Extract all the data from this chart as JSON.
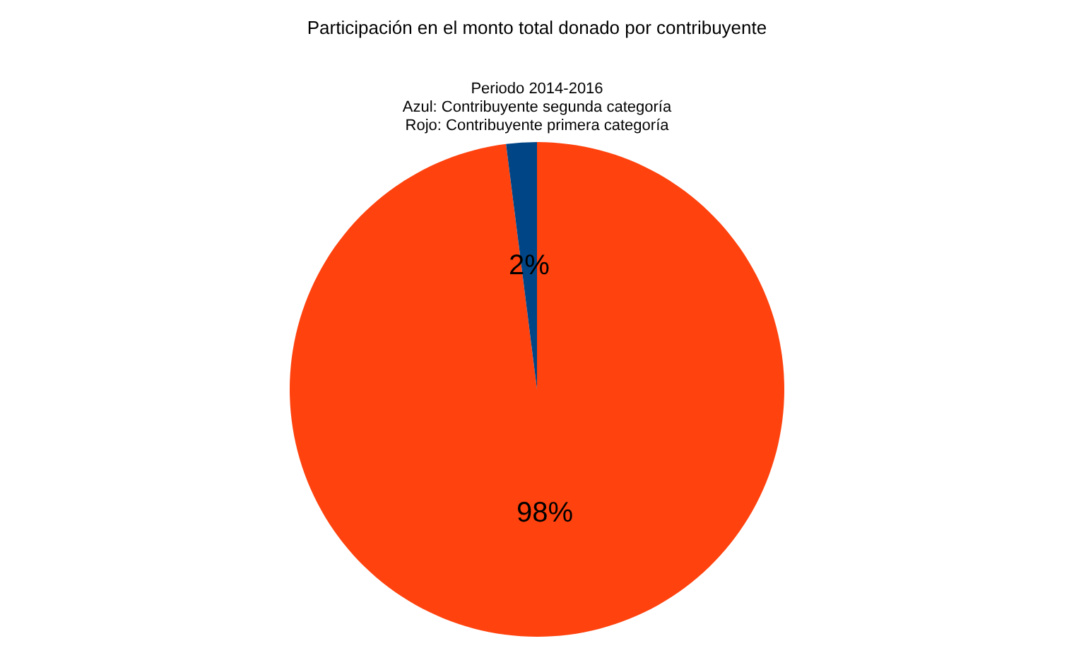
{
  "chart_data": {
    "type": "pie",
    "title": "Participación en el monto total donado por contribuyente",
    "subtitle": [
      "Periodo 2014-2016",
      "Azul: Contribuyente segunda categoría",
      "Rojo: Contribuyente primera categoría"
    ],
    "categories": [
      null,
      null
    ],
    "values": [
      98,
      2
    ],
    "colors": [
      "#ff420e",
      "#004586"
    ],
    "value_labels": [
      "98%",
      "2%"
    ],
    "legend": false
  }
}
